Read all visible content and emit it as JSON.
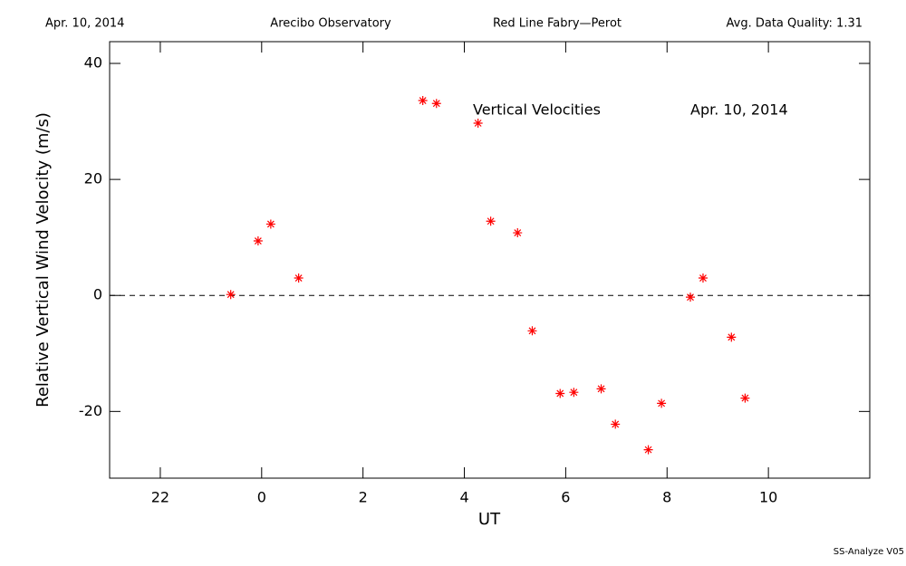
{
  "chart_data": {
    "type": "scatter",
    "header": [
      "Apr. 10, 2014",
      "Arecibo Observatory",
      "Red Line Fabry—Perot",
      "Avg. Data Quality: 1.31"
    ],
    "annotations": [
      "Vertical Velocities",
      "Apr. 10, 2014"
    ],
    "footer": "SS-Analyze V05",
    "xlabel": "UT",
    "ylabel": "Relative Vertical Wind Velocity (m/s)",
    "xlim": [
      -3,
      12
    ],
    "ylim": [
      -31.5,
      43.75
    ],
    "xticks": [
      {
        "value": -2,
        "label": "22"
      },
      0,
      2,
      4,
      6,
      8,
      10
    ],
    "yticks": [
      -20,
      0,
      20,
      40
    ],
    "reference_line": 0,
    "color": "#ff0000",
    "x": [
      -0.61,
      -0.07,
      0.18,
      0.73,
      3.18,
      3.45,
      4.27,
      4.52,
      5.05,
      5.34,
      5.89,
      6.16,
      6.7,
      6.98,
      7.63,
      7.89,
      8.46,
      8.71,
      9.27,
      9.54
    ],
    "values": [
      0.16,
      9.4,
      12.3,
      3.0,
      33.6,
      33.1,
      29.7,
      12.8,
      10.8,
      -6.1,
      -16.9,
      -16.7,
      -16.1,
      -22.2,
      -26.6,
      -18.6,
      -0.3,
      3.0,
      -7.2,
      -17.7
    ]
  }
}
